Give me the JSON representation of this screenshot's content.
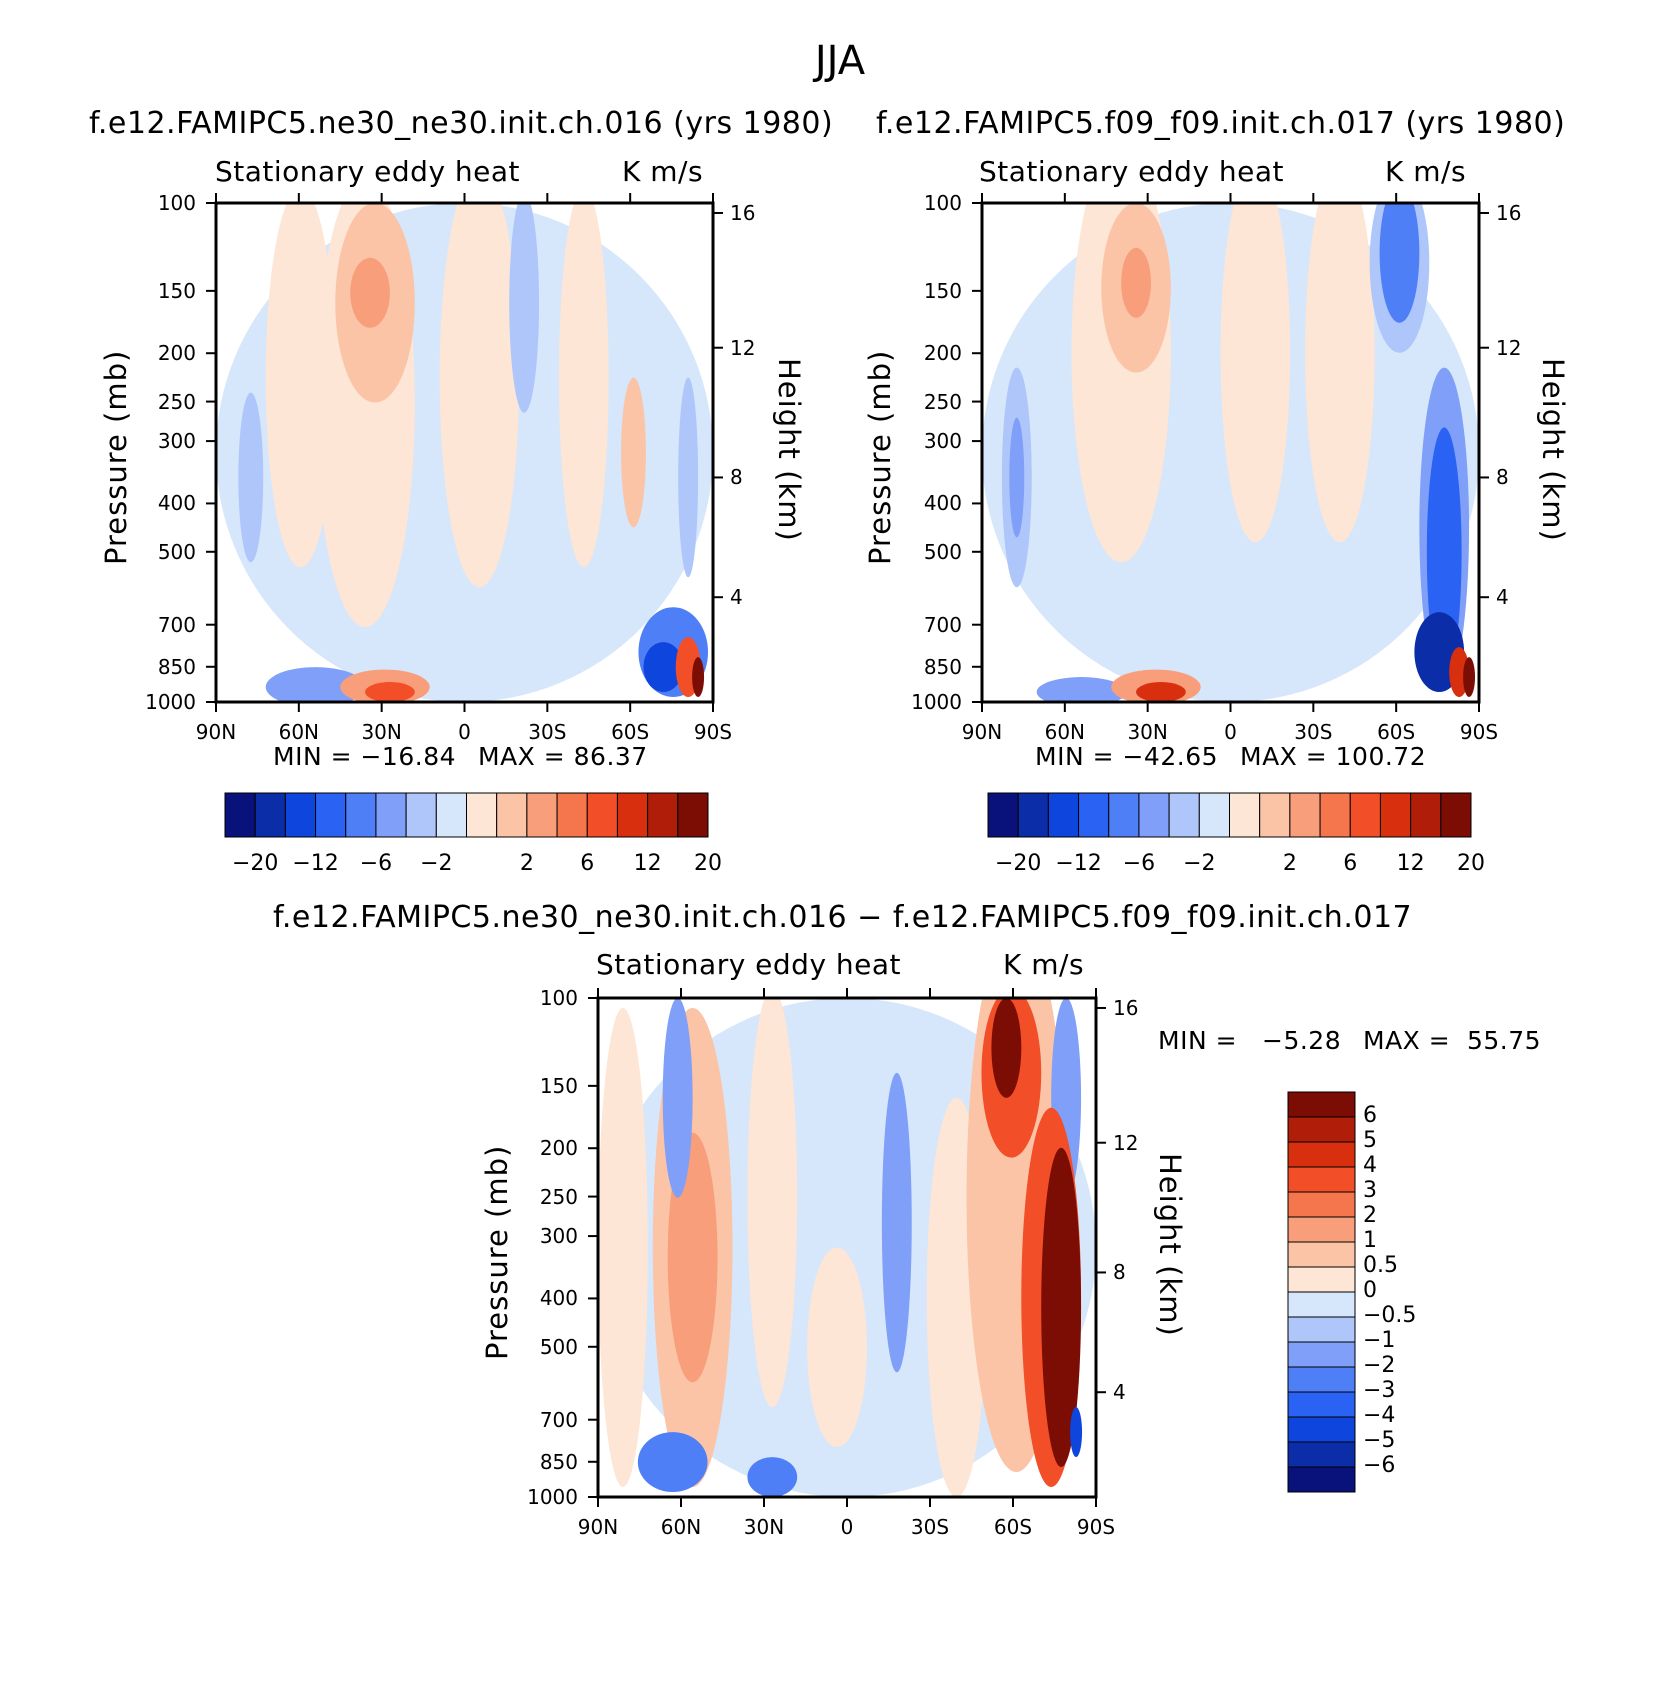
{
  "figure_title": "JJA",
  "colors": {
    "neg": [
      "#08127a",
      "#0b2ea8",
      "#0e45dc",
      "#2a62f3",
      "#4f7ff6",
      "#7f9ff8",
      "#aec6fa",
      "#d6e6fb"
    ],
    "pos": [
      "#fde6d5",
      "#fbc4a6",
      "#f89e7a",
      "#f5764d",
      "#f24e28",
      "#d8300f",
      "#b01e0a",
      "#7b0d05"
    ],
    "diff_neg": [
      "#d6e6fb",
      "#aec6fa",
      "#7f9ff8",
      "#4f7ff6",
      "#2a62f3",
      "#0e45dc",
      "#0b2ea8",
      "#08127a"
    ],
    "diff_pos": [
      "#fde6d5",
      "#fbc4a6",
      "#f89e7a",
      "#f5764d",
      "#f24e28",
      "#d8300f",
      "#b01e0a",
      "#7b0d05"
    ]
  },
  "chart_data": [
    {
      "type": "heatmap",
      "title": "f.e12.FAMIPC5.ne30_ne30.init.ch.016 (yrs 1980)",
      "subtitle_left": "Stationary eddy heat",
      "subtitle_right": "K m/s",
      "xlabel": "",
      "ylabel": "Pressure (mb)",
      "ylabel_right": "Height (km)",
      "x_ticks": [
        "90N",
        "60N",
        "30N",
        "0",
        "30S",
        "60S",
        "90S"
      ],
      "y_ticks": [
        "100",
        "150",
        "200",
        "250",
        "300",
        "400",
        "500",
        "700",
        "850",
        "1000"
      ],
      "height_ticks": [
        "16",
        "12",
        "8",
        "4"
      ],
      "min_label": "MIN = −16.84",
      "max_label": "MAX = 86.37",
      "colorbar_labels": [
        "−20",
        "−12",
        "−6",
        "−2",
        "2",
        "6",
        "12",
        "20"
      ],
      "contour_levels": [
        -20,
        -16,
        -12,
        -8,
        -6,
        -4,
        -2,
        0,
        2,
        4,
        6,
        8,
        12,
        16,
        20
      ]
    },
    {
      "type": "heatmap",
      "title": "f.e12.FAMIPC5.f09_f09.init.ch.017 (yrs 1980)",
      "subtitle_left": "Stationary eddy heat",
      "subtitle_right": "K m/s",
      "xlabel": "",
      "ylabel": "Pressure (mb)",
      "ylabel_right": "Height (km)",
      "x_ticks": [
        "90N",
        "60N",
        "30N",
        "0",
        "30S",
        "60S",
        "90S"
      ],
      "y_ticks": [
        "100",
        "150",
        "200",
        "250",
        "300",
        "400",
        "500",
        "700",
        "850",
        "1000"
      ],
      "height_ticks": [
        "16",
        "12",
        "8",
        "4"
      ],
      "min_label": "MIN = −42.65",
      "max_label": "MAX = 100.72",
      "colorbar_labels": [
        "−20",
        "−12",
        "−6",
        "−2",
        "2",
        "6",
        "12",
        "20"
      ],
      "contour_levels": [
        -20,
        -16,
        -12,
        -8,
        -6,
        -4,
        -2,
        0,
        2,
        4,
        6,
        8,
        12,
        16,
        20
      ]
    },
    {
      "type": "heatmap",
      "title": "f.e12.FAMIPC5.ne30_ne30.init.ch.016 − f.e12.FAMIPC5.f09_f09.init.ch.017",
      "subtitle_left": "Stationary eddy heat",
      "subtitle_right": "K m/s",
      "xlabel": "",
      "ylabel": "Pressure (mb)",
      "ylabel_right": "Height (km)",
      "x_ticks": [
        "90N",
        "60N",
        "30N",
        "0",
        "30S",
        "60S",
        "90S"
      ],
      "y_ticks": [
        "100",
        "150",
        "200",
        "250",
        "300",
        "400",
        "500",
        "700",
        "850",
        "1000"
      ],
      "height_ticks": [
        "16",
        "12",
        "8",
        "4"
      ],
      "min_label": "MIN =",
      "min_value": "−5.28",
      "max_label": "MAX =",
      "max_value": "55.75",
      "colorbar_labels": [
        "6",
        "5",
        "4",
        "3",
        "2",
        "1",
        "0.5",
        "0",
        "−0.5",
        "−1",
        "−2",
        "−3",
        "−4",
        "−5",
        "−6"
      ],
      "contour_levels": [
        -6,
        -5,
        -4,
        -3,
        -2,
        -1,
        -0.5,
        0,
        0.5,
        1,
        2,
        3,
        4,
        5,
        6
      ]
    }
  ]
}
